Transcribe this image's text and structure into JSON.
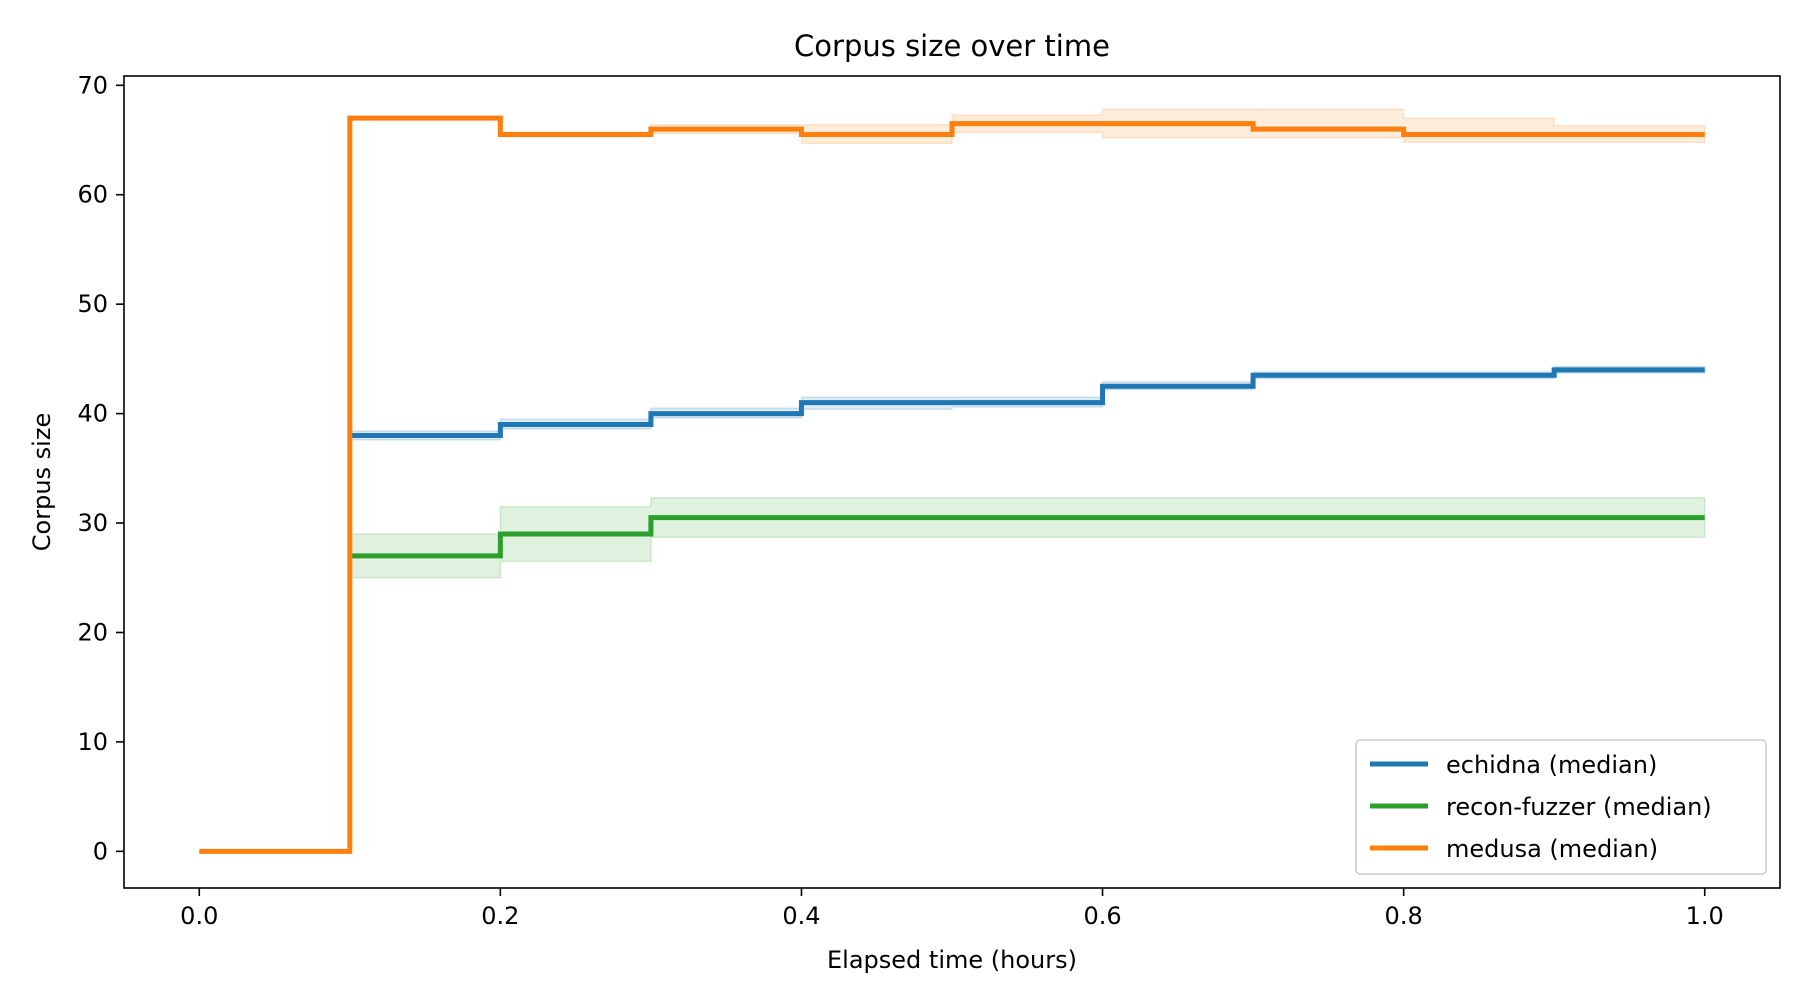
{
  "chart_data": {
    "type": "line",
    "step": "post",
    "title": "Corpus size over time",
    "xlabel": "Elapsed time (hours)",
    "ylabel": "Corpus size",
    "xlim": [
      -0.05,
      1.05
    ],
    "ylim": [
      -3.35,
      70.85
    ],
    "xticks": [
      0.0,
      0.2,
      0.4,
      0.6,
      0.8,
      1.0
    ],
    "xtick_labels": [
      "0.0",
      "0.2",
      "0.4",
      "0.6",
      "0.8",
      "1.0"
    ],
    "yticks": [
      0,
      10,
      20,
      30,
      40,
      50,
      60,
      70
    ],
    "ytick_labels": [
      "0",
      "10",
      "20",
      "30",
      "40",
      "50",
      "60",
      "70"
    ],
    "grid": false,
    "legend_position": "lower-right",
    "x": [
      0.0,
      0.1,
      0.2,
      0.3,
      0.4,
      0.5,
      0.6,
      0.7,
      0.8,
      0.9,
      1.0
    ],
    "series": [
      {
        "name": "echidna (median)",
        "color": "#1f77b4",
        "x": [
          0.1,
          0.2,
          0.3,
          0.4,
          0.5,
          0.6,
          0.7,
          0.8,
          0.9,
          1.0
        ],
        "values": [
          38,
          39,
          40,
          41,
          41,
          42.5,
          43.5,
          43.5,
          44,
          44
        ],
        "band_low": [
          37.6,
          38.6,
          39.6,
          40.4,
          40.6,
          42.2,
          43.2,
          43.2,
          43.7,
          43.7
        ],
        "band_high": [
          38.4,
          39.5,
          40.5,
          41.5,
          41.5,
          42.9,
          43.8,
          43.8,
          44.3,
          44.3
        ]
      },
      {
        "name": "recon-fuzzer (median)",
        "color": "#2ca02c",
        "x": [
          0.1,
          0.2,
          0.3,
          0.4,
          0.5,
          0.6,
          0.7,
          0.8,
          0.9,
          1.0
        ],
        "values": [
          27,
          29,
          30.5,
          30.5,
          30.5,
          30.5,
          30.5,
          30.5,
          30.5,
          30.5
        ],
        "band_low": [
          25,
          26.5,
          28.7,
          28.7,
          28.7,
          28.7,
          28.7,
          28.7,
          28.7,
          28.7
        ],
        "band_high": [
          29,
          31.5,
          32.3,
          32.3,
          32.3,
          32.3,
          32.3,
          32.3,
          32.3,
          32.3
        ]
      },
      {
        "name": "medusa (median)",
        "color": "#ff7f0e",
        "x": [
          0.0,
          0.1,
          0.2,
          0.3,
          0.4,
          0.5,
          0.6,
          0.7,
          0.8,
          0.9,
          1.0
        ],
        "values": [
          0,
          67,
          65.5,
          66,
          65.5,
          66.5,
          66.5,
          66,
          65.5,
          65.5,
          65.5
        ],
        "band_low": [
          0,
          67,
          65.3,
          65.6,
          64.7,
          65.7,
          65.2,
          65.2,
          64.8,
          64.8,
          64.8
        ],
        "band_high": [
          0,
          67,
          65.7,
          66.4,
          66.4,
          67.3,
          67.8,
          67.8,
          67.0,
          66.3,
          66.3
        ]
      }
    ]
  }
}
